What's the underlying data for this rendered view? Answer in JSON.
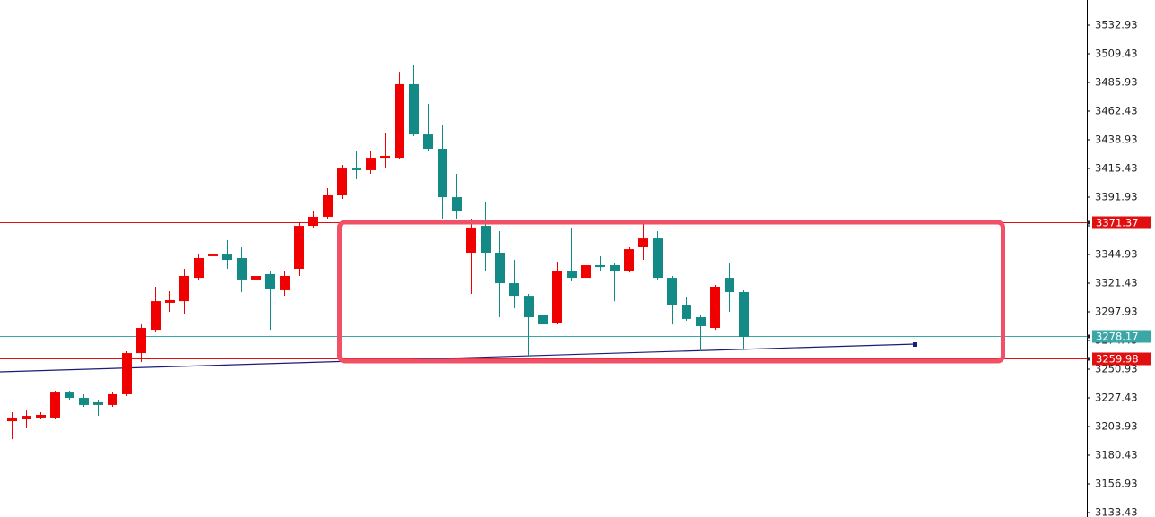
{
  "chart_data": {
    "type": "candlestick",
    "up_color": "#f00000",
    "down_color": "#138a85",
    "open": [
      3208.3,
      3209.8,
      3211.3,
      3211.3,
      3231.8,
      3227.4,
      3223.8,
      3221.6,
      3230.4,
      3264.1,
      3283.2,
      3305.3,
      3306.7,
      3325.8,
      3343.5,
      3344.9,
      3342.0,
      3324.4,
      3328.8,
      3315.6,
      3333.2,
      3368.4,
      3375.8,
      3393.4,
      3415.4,
      3414.0,
      3424.2,
      3424.2,
      3484.5,
      3443.3,
      3431.6,
      3391.9,
      3346.4,
      3368.4,
      3346.4,
      3321.4,
      3311.1,
      3295.0,
      3289.1,
      3331.7,
      3325.8,
      3336.1,
      3336.1,
      3331.7,
      3350.8,
      3358.1,
      3325.8,
      3303.8,
      3293.5,
      3284.7,
      3325.8,
      3314.1
    ],
    "high": [
      3215.7,
      3217.1,
      3215.7,
      3233.3,
      3233.3,
      3230.4,
      3226.0,
      3231.8,
      3265.6,
      3287.6,
      3318.5,
      3314.8,
      3333.2,
      3344.9,
      3358.1,
      3356.7,
      3350.8,
      3333.2,
      3331.7,
      3331.7,
      3371.4,
      3380.2,
      3399.3,
      3418.4,
      3430.1,
      3430.1,
      3444.8,
      3494.7,
      3500.6,
      3468.3,
      3450.7,
      3411.0,
      3374.3,
      3387.5,
      3364.0,
      3340.5,
      3312.6,
      3302.3,
      3339.1,
      3367.0,
      3342.0,
      3343.5,
      3337.6,
      3350.8,
      3369.9,
      3364.0,
      3327.3,
      3309.7,
      3295.0,
      3320.0,
      3337.6,
      3315.6
    ],
    "low": [
      3193.6,
      3202.5,
      3209.8,
      3209.8,
      3226.0,
      3220.1,
      3212.7,
      3220.1,
      3228.9,
      3256.8,
      3281.8,
      3297.9,
      3296.5,
      3324.4,
      3339.1,
      3333.2,
      3314.1,
      3320.0,
      3283.2,
      3311.1,
      3327.3,
      3367.0,
      3374.3,
      3390.5,
      3406.6,
      3411.0,
      3415.4,
      3422.8,
      3441.9,
      3430.1,
      3374.3,
      3374.3,
      3312.6,
      3331.7,
      3293.5,
      3300.9,
      3261.2,
      3280.3,
      3287.6,
      3322.9,
      3314.1,
      3331.7,
      3306.7,
      3330.2,
      3340.5,
      3324.4,
      3287.6,
      3290.6,
      3265.6,
      3283.2,
      3297.9,
      3267.1
    ],
    "close": [
      3211.3,
      3212.7,
      3213.5,
      3231.8,
      3227.4,
      3221.6,
      3221.6,
      3230.4,
      3264.1,
      3284.7,
      3306.7,
      3307.5,
      3327.3,
      3342.0,
      3344.9,
      3340.5,
      3324.4,
      3327.3,
      3317.0,
      3327.3,
      3368.4,
      3375.8,
      3393.4,
      3415.4,
      3414.0,
      3424.2,
      3425.7,
      3484.5,
      3443.3,
      3431.6,
      3391.9,
      3380.2,
      3367.0,
      3346.4,
      3321.4,
      3311.1,
      3293.5,
      3287.6,
      3331.7,
      3325.8,
      3336.1,
      3334.6,
      3331.7,
      3349.3,
      3358.1,
      3325.8,
      3303.8,
      3292.1,
      3286.2,
      3318.5,
      3314.1,
      3277.4
    ],
    "ylim": [
      3129.76,
      3553.5
    ],
    "yticks": [
      3133.43,
      3156.93,
      3180.43,
      3203.93,
      3227.43,
      3250.93,
      3274.43,
      3297.93,
      3321.43,
      3344.93,
      3368.43,
      3391.93,
      3415.43,
      3438.93,
      3462.43,
      3485.93,
      3509.43,
      3532.93
    ],
    "levels": [
      {
        "value": 3371.37,
        "color": "#e01010"
      },
      {
        "value": 3278.17,
        "color": "#3aa6a6"
      },
      {
        "value": 3259.98,
        "color": "#e01010"
      }
    ]
  }
}
